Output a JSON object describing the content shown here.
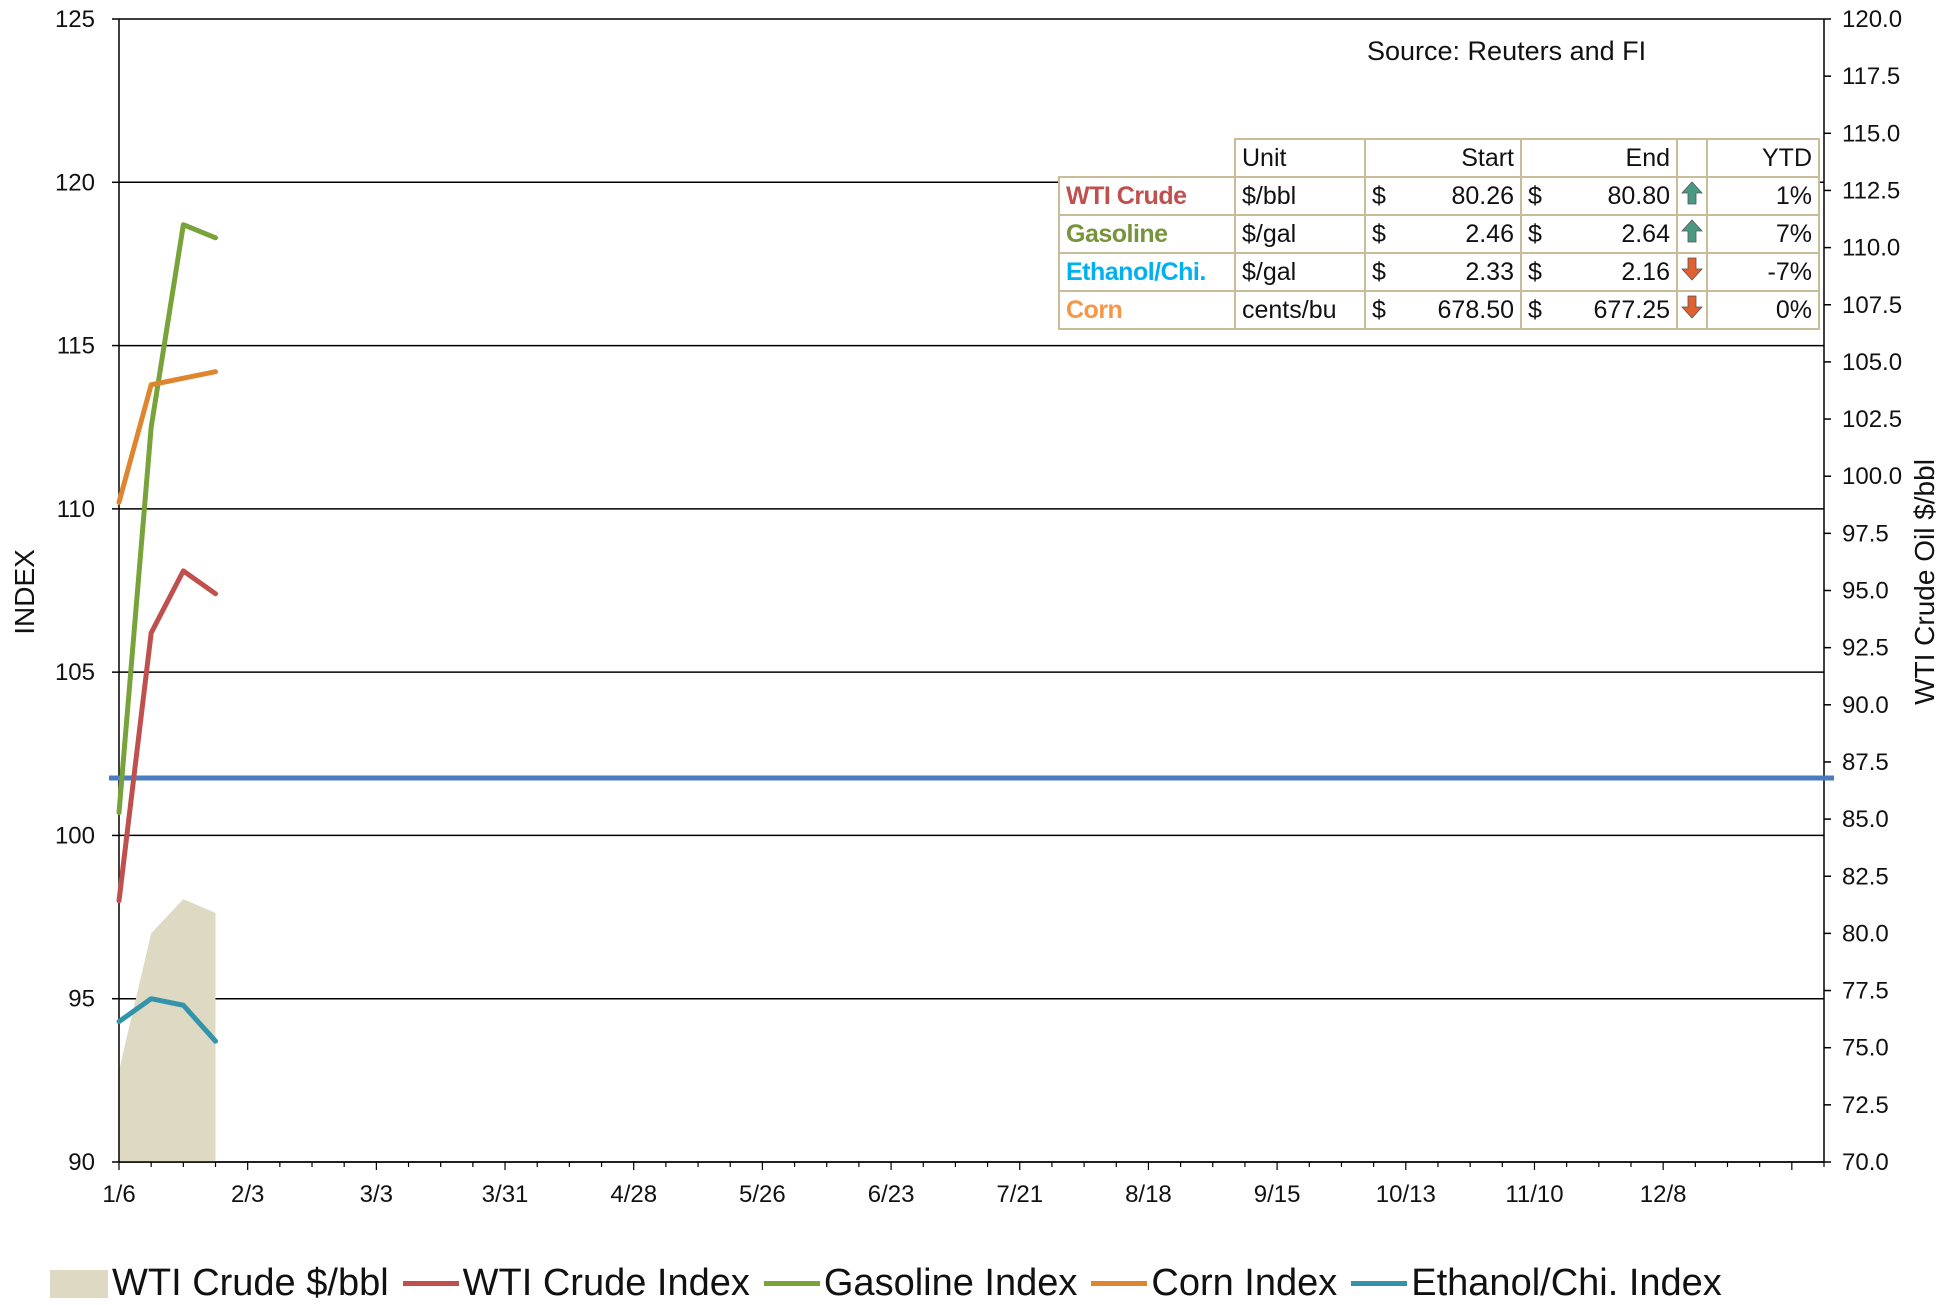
{
  "chart_data": {
    "type": "line",
    "source_text": "Source: Reuters and FI",
    "ylabel_left": "INDEX",
    "ylabel_right": "WTI Crude Oil $/bbl",
    "ylim_left": [
      90,
      125
    ],
    "ylim_right": [
      70,
      120
    ],
    "yticks_left": [
      "90",
      "95",
      "100",
      "105",
      "110",
      "115",
      "120",
      "125"
    ],
    "yticks_right": [
      "70.0",
      "72.5",
      "75.0",
      "77.5",
      "80.0",
      "82.5",
      "85.0",
      "87.5",
      "90.0",
      "92.5",
      "95.0",
      "97.5",
      "100.0",
      "102.5",
      "105.0",
      "107.5",
      "110.0",
      "112.5",
      "115.0",
      "117.5",
      "120.0"
    ],
    "xticks": [
      "1/6",
      "2/3",
      "3/3",
      "3/31",
      "4/28",
      "5/26",
      "6/23",
      "7/21",
      "8/18",
      "9/15",
      "10/13",
      "11/10",
      "12/8"
    ],
    "x_minor_count": 53,
    "grid": "horizontal",
    "x": [
      0,
      1,
      2,
      3
    ],
    "series": [
      {
        "name": "WTI Crude $/bbl",
        "type": "area",
        "axis": "right",
        "color": "#ddd9c3",
        "values": [
          74.0,
          80.0,
          81.5,
          80.9
        ]
      },
      {
        "name": "WTI Crude Index",
        "type": "line",
        "axis": "left",
        "color": "#c0504d",
        "values": [
          98.0,
          106.2,
          108.1,
          107.4
        ]
      },
      {
        "name": "Gasoline Index",
        "type": "line",
        "axis": "left",
        "color": "#77a33a",
        "values": [
          100.7,
          112.5,
          118.7,
          118.3
        ]
      },
      {
        "name": "Corn Index",
        "type": "line",
        "axis": "left",
        "color": "#e0852f",
        "values": [
          110.2,
          113.8,
          114.0,
          114.2
        ]
      },
      {
        "name": "Ethanol/Chi. Index",
        "type": "line",
        "axis": "left",
        "color": "#3393a8",
        "values": [
          94.3,
          95.0,
          94.8,
          93.7
        ]
      }
    ],
    "reference_line": {
      "axis": "right",
      "value": 86.8,
      "color": "#4a7dbf"
    }
  },
  "table": {
    "headers": {
      "unit": "Unit",
      "start": "Start",
      "end": "End",
      "ytd": "YTD"
    },
    "rows": [
      {
        "name": "WTI Crude",
        "color": "#c0504d",
        "unit": "$/bbl",
        "start_cur": "$",
        "start": "80.26",
        "end_cur": "$",
        "end": "80.80",
        "trend": "up",
        "ytd": "1%"
      },
      {
        "name": "Gasoline",
        "color": "#77933c",
        "unit": "$/gal",
        "start_cur": "$",
        "start": "2.46",
        "end_cur": "$",
        "end": "2.64",
        "trend": "up",
        "ytd": "7%"
      },
      {
        "name": "Ethanol/Chi.",
        "color": "#00b0f0",
        "unit": "$/gal",
        "start_cur": "$",
        "start": "2.33",
        "end_cur": "$",
        "end": "2.16",
        "trend": "down",
        "ytd": "-7%"
      },
      {
        "name": "Corn",
        "color": "#f79646",
        "unit": "cents/bu",
        "start_cur": "$",
        "start": "678.50",
        "end_cur": "$",
        "end": "677.25",
        "trend": "down",
        "ytd": "0%"
      }
    ],
    "arrow_colors": {
      "up": "#4a9a83",
      "down": "#e06030"
    }
  },
  "legend": [
    {
      "label": "WTI Crude $/bbl",
      "kind": "area",
      "color": "#ddd9c3"
    },
    {
      "label": "WTI Crude Index",
      "kind": "line",
      "color": "#c0504d"
    },
    {
      "label": "Gasoline Index",
      "kind": "line",
      "color": "#77a33a"
    },
    {
      "label": "Corn Index",
      "kind": "line",
      "color": "#e0852f"
    },
    {
      "label": "Ethanol/Chi. Index",
      "kind": "line",
      "color": "#3393a8"
    }
  ]
}
